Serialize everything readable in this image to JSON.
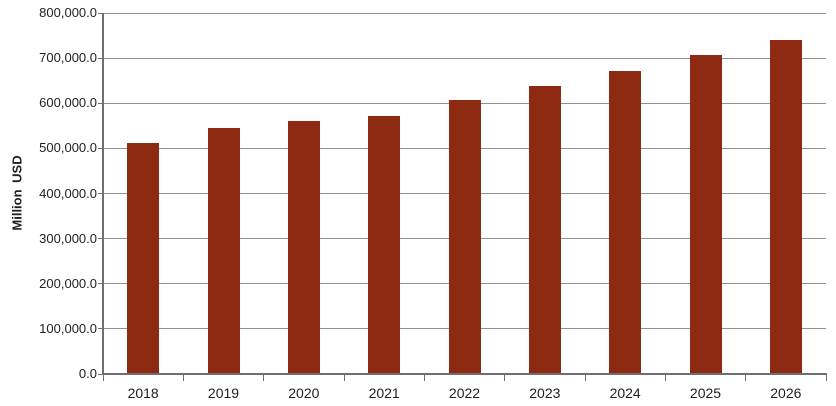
{
  "chart_data": {
    "type": "bar",
    "title": "",
    "xlabel": "",
    "ylabel": "Million USD",
    "categories": [
      "2018",
      "2019",
      "2020",
      "2021",
      "2022",
      "2023",
      "2024",
      "2025",
      "2026"
    ],
    "values": [
      513000,
      546000,
      561000,
      571000,
      607000,
      638000,
      672000,
      707000,
      740000
    ],
    "unit": "Million USD",
    "ylim": [
      0,
      800000
    ],
    "y_tick_interval": 100000,
    "y_tick_labels": [
      "0.0",
      "100,000.0",
      "200,000.0",
      "300,000.0",
      "400,000.0",
      "500,000.0",
      "600,000.0",
      "700,000.0",
      "800,000.0"
    ],
    "grid": "horizontal",
    "legend_position": "none",
    "colors": {
      "bar": "#8E2A12",
      "gridline": "#8F8F8F",
      "axis": "#6F6F6F",
      "text": "#1F1F1F",
      "background": "#FFFFFF"
    }
  }
}
